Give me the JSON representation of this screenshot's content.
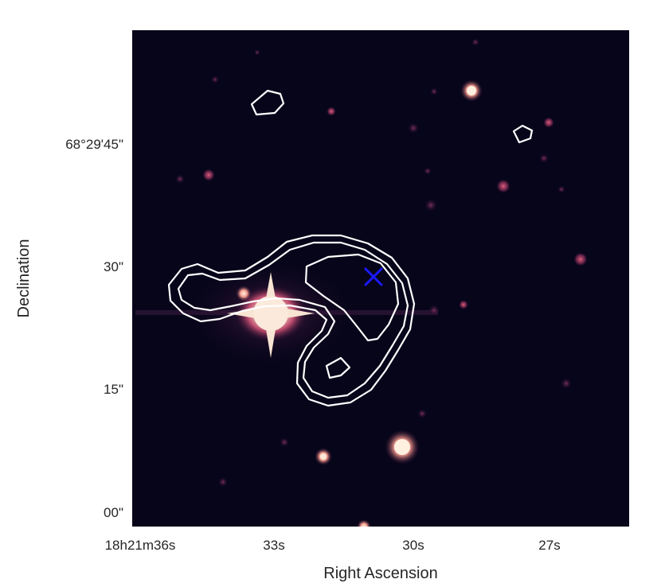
{
  "figure": {
    "colors": {
      "background": "#07051a",
      "contour": "#ffffff",
      "marker": "#1a1aff",
      "source_glow": "#f7e4d2",
      "source_mid": "#d8577a",
      "source_faint": "#6a2a55"
    },
    "xaxis": {
      "label": "Right Ascension",
      "ticks": [
        "18h21m36s",
        "33s",
        "30s",
        "27s"
      ]
    },
    "yaxis": {
      "label": "Declination",
      "ticks": [
        "68°29'45\"",
        "30\"",
        "15\"",
        "00\""
      ]
    },
    "marker": {
      "symbol": "x-cross",
      "color": "#1a1aff"
    },
    "contours": {
      "count_shown": 2,
      "color": "#ffffff"
    }
  }
}
